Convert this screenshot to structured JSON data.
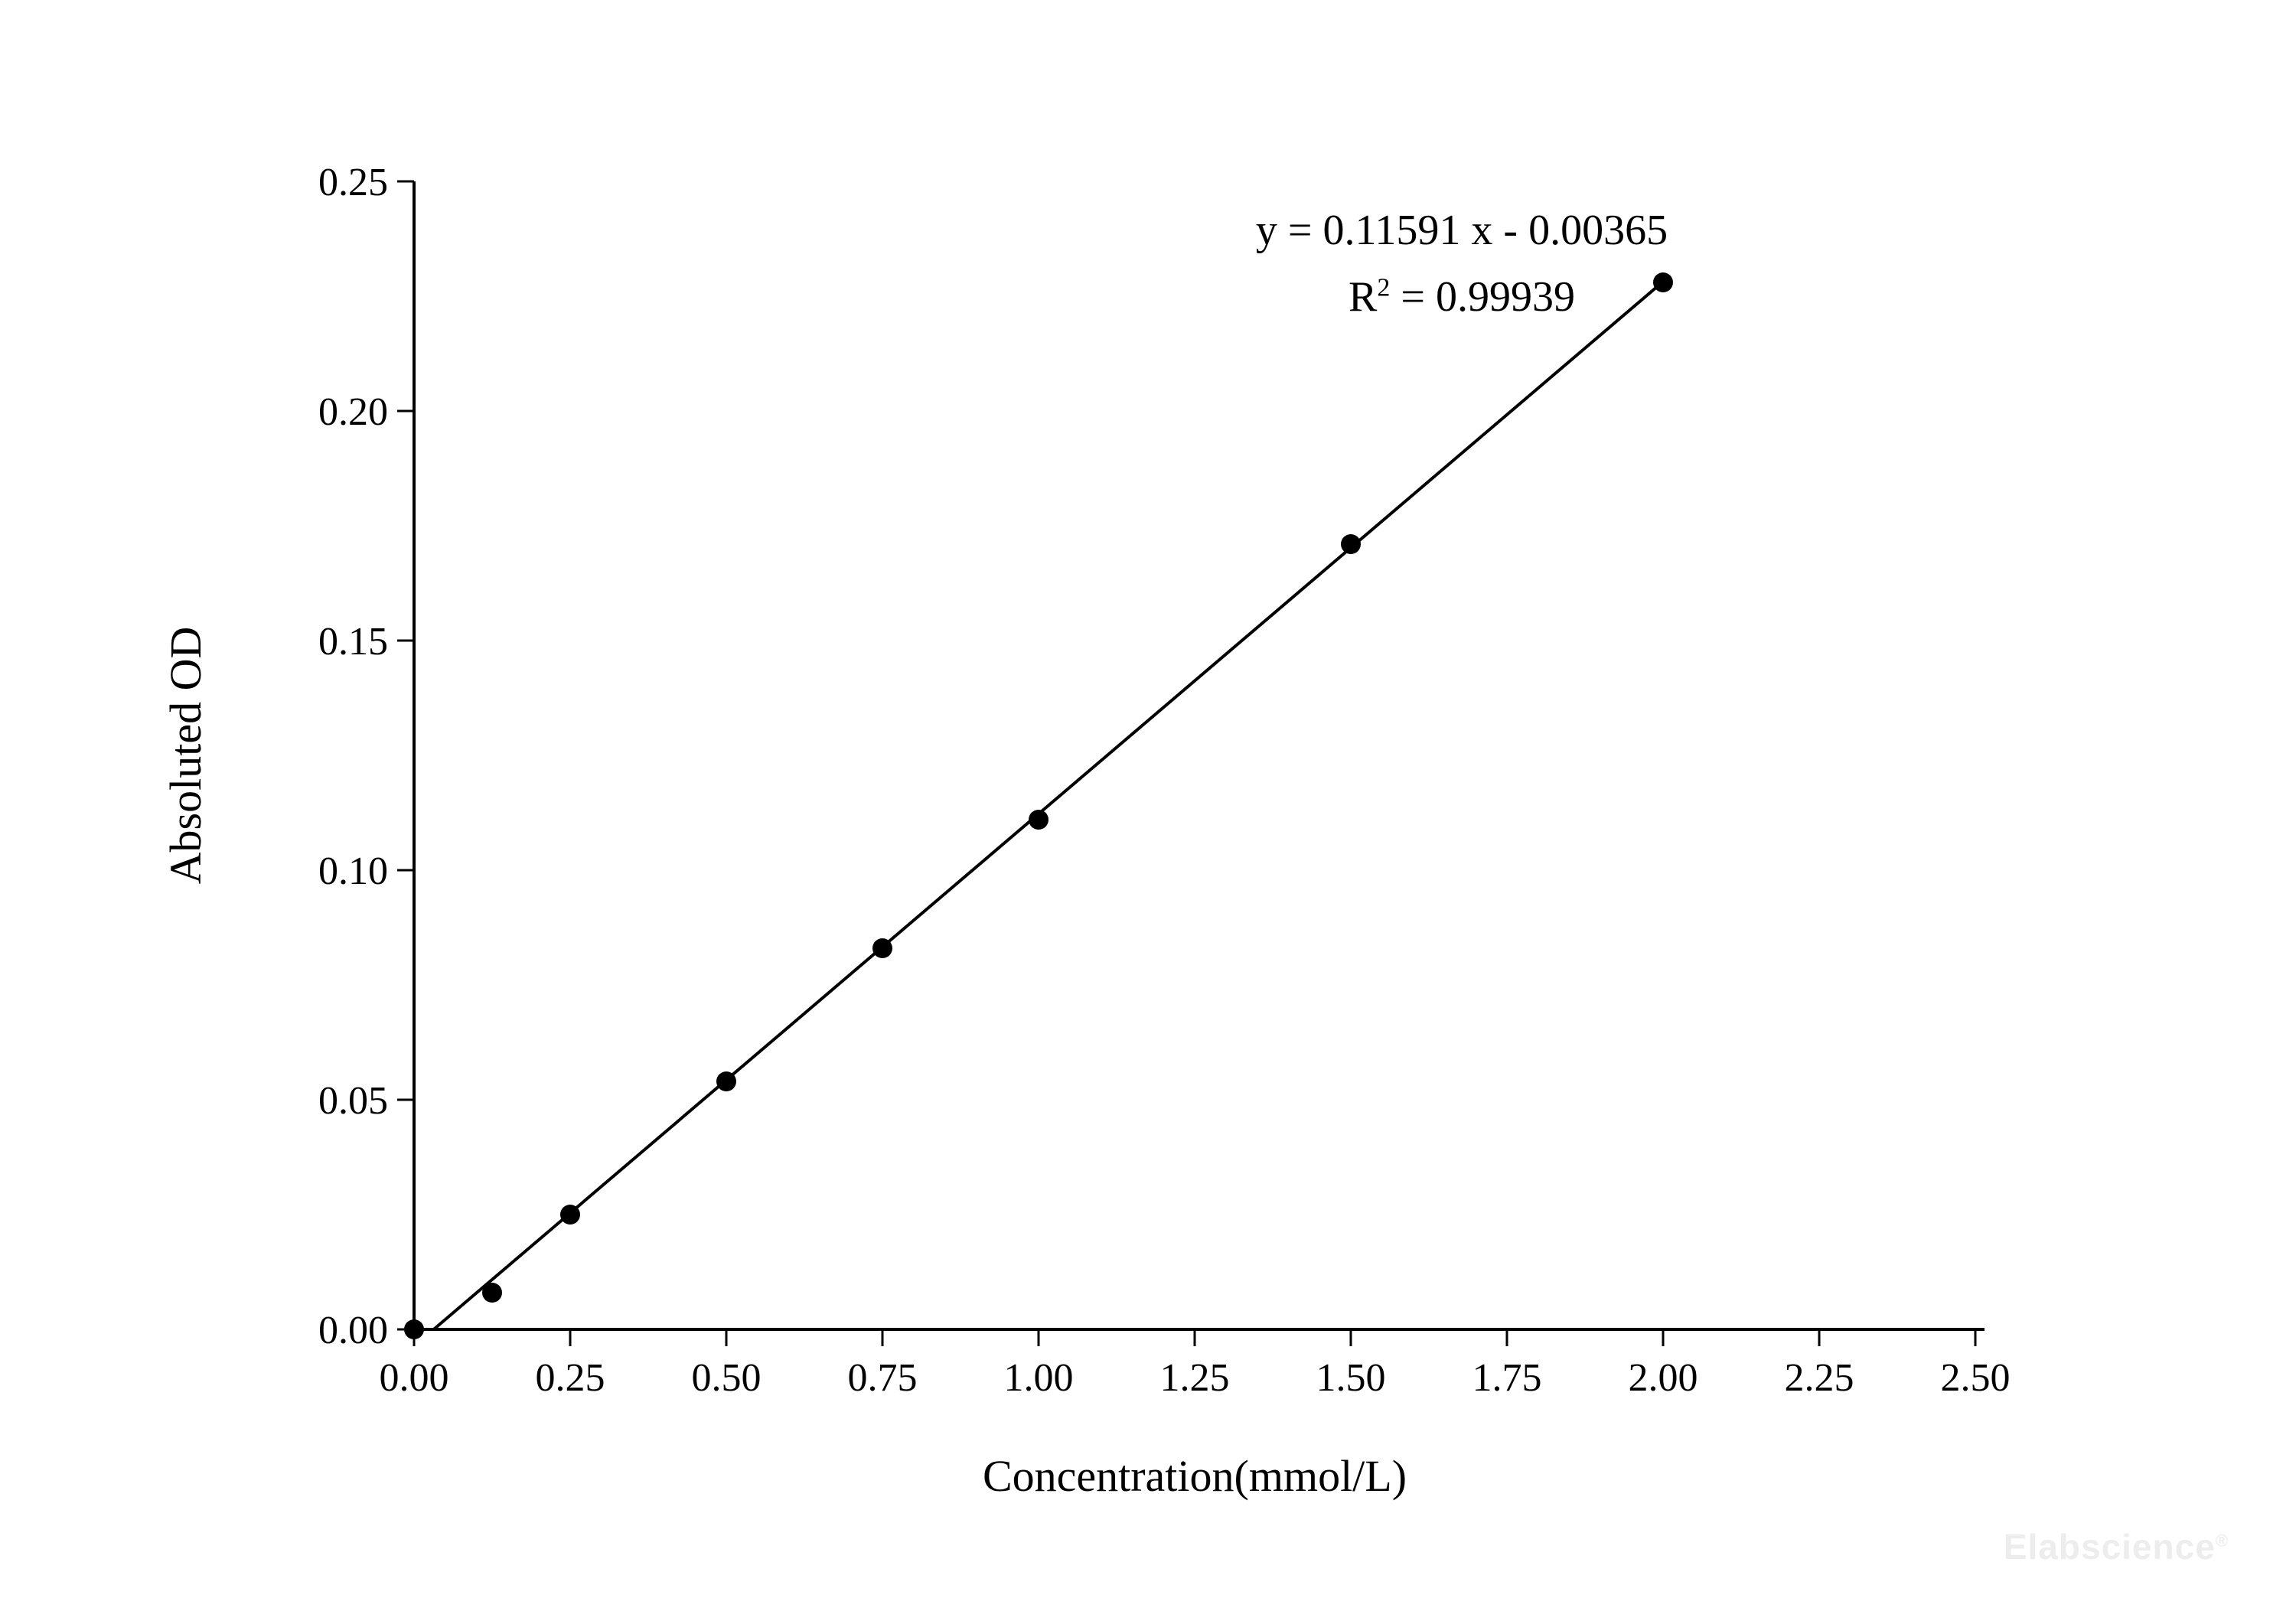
{
  "page": {
    "background": "#ffffff"
  },
  "annotation": {
    "equation": "y = 0.11591 x - 0.00365",
    "r2_prefix": "R",
    "r2_sup": "2",
    "r2_rest": " = 0.99939"
  },
  "watermark": {
    "text": "Elabscience",
    "reg": "®",
    "color": "#ededed"
  },
  "chart_data": {
    "type": "scatter",
    "title": "",
    "xlabel": "Concentration(mmol/L)",
    "ylabel": "Absoluted OD",
    "xlim": [
      0,
      2.5
    ],
    "ylim": [
      0,
      0.25
    ],
    "grid": false,
    "legend": "none",
    "marker_color": "#000000",
    "line_color": "#000000",
    "axis_color": "#000000",
    "x_ticks": [
      {
        "value": 0.0,
        "label": "0.00"
      },
      {
        "value": 0.25,
        "label": "0.25"
      },
      {
        "value": 0.5,
        "label": "0.50"
      },
      {
        "value": 0.75,
        "label": "0.75"
      },
      {
        "value": 1.0,
        "label": "1.00"
      },
      {
        "value": 1.25,
        "label": "1.25"
      },
      {
        "value": 1.5,
        "label": "1.50"
      },
      {
        "value": 1.75,
        "label": "1.75"
      },
      {
        "value": 2.0,
        "label": "2.00"
      },
      {
        "value": 2.25,
        "label": "2.25"
      },
      {
        "value": 2.5,
        "label": "2.50"
      }
    ],
    "y_ticks": [
      {
        "value": 0.0,
        "label": "0.00"
      },
      {
        "value": 0.05,
        "label": "0.05"
      },
      {
        "value": 0.1,
        "label": "0.10"
      },
      {
        "value": 0.15,
        "label": "0.15"
      },
      {
        "value": 0.2,
        "label": "0.20"
      },
      {
        "value": 0.25,
        "label": "0.25"
      }
    ],
    "points": {
      "x": [
        0,
        0.125,
        0.25,
        0.5,
        0.75,
        1.0,
        1.5,
        2.0
      ],
      "y": [
        0.0,
        0.008,
        0.025,
        0.054,
        0.083,
        0.111,
        0.171,
        0.228
      ]
    },
    "fit": {
      "slope": 0.11591,
      "intercept": -0.00365,
      "r_squared": 0.99939,
      "x_start": 0.0315,
      "x_end": 2.0
    }
  }
}
